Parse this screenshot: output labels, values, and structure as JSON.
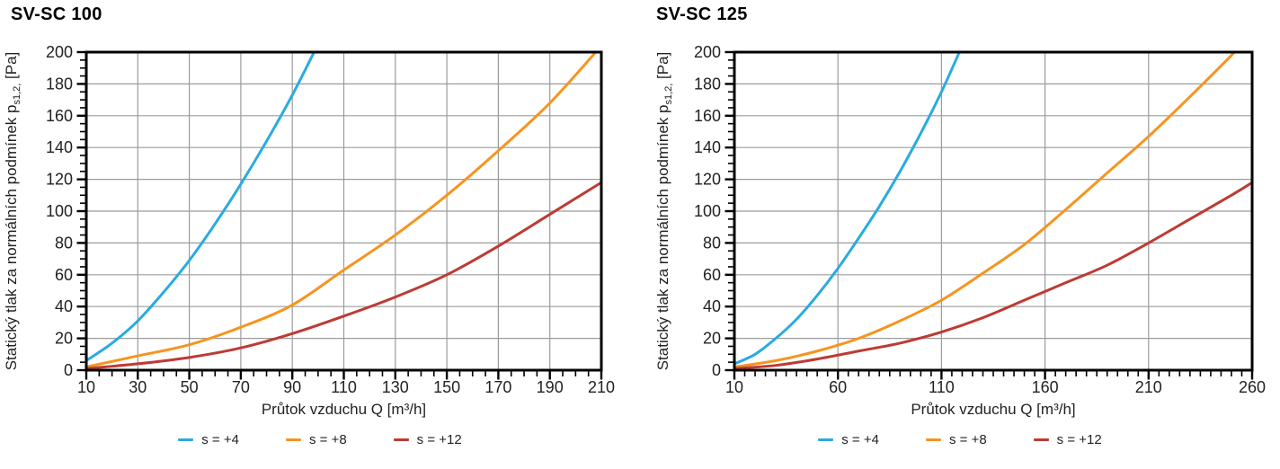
{
  "page": {
    "background": "#FFFFFF"
  },
  "colors": {
    "grid": "#9B9B9B",
    "axis": "#000000",
    "tick_text": "#222222",
    "title_text": "#000000"
  },
  "chart_data": [
    {
      "type": "line",
      "title": "SV-SC 100",
      "xlabel": "Průtok vzduchu Q [m³/h]",
      "ylabel_prefix": "Statický tlak za normálních podmínek p",
      "ylabel_sub": "s1,2,",
      "ylabel_suffix": " [Pa]",
      "x_min": 10,
      "x_max": 210,
      "x_major": 20,
      "x_minor": 5,
      "y_min": 0,
      "y_max": 200,
      "y_major": 20,
      "y_minor": 5,
      "x_tick_labels": [
        10,
        30,
        50,
        70,
        90,
        110,
        130,
        150,
        170,
        190,
        210
      ],
      "y_tick_labels": [
        0,
        20,
        40,
        60,
        80,
        100,
        120,
        140,
        160,
        180,
        200
      ],
      "grid": "on",
      "legend_position": "bottom",
      "series": [
        {
          "name": "s = +4",
          "color": "#29ABE2",
          "points": [
            [
              10,
              6
            ],
            [
              20,
              17
            ],
            [
              30,
              31
            ],
            [
              40,
              49
            ],
            [
              50,
              69
            ],
            [
              60,
              92
            ],
            [
              70,
              117
            ],
            [
              80,
              144
            ],
            [
              90,
              173
            ],
            [
              100,
              205
            ]
          ]
        },
        {
          "name": "s = +8",
          "color": "#F7941E",
          "points": [
            [
              10,
              2
            ],
            [
              30,
              9
            ],
            [
              50,
              16
            ],
            [
              70,
              27
            ],
            [
              90,
              41
            ],
            [
              110,
              63
            ],
            [
              130,
              85
            ],
            [
              150,
              110
            ],
            [
              170,
              138
            ],
            [
              190,
              168
            ],
            [
              210,
              204
            ]
          ]
        },
        {
          "name": "s = +12",
          "color": "#BE3A34",
          "points": [
            [
              10,
              1
            ],
            [
              30,
              4
            ],
            [
              50,
              8
            ],
            [
              70,
              14
            ],
            [
              90,
              23
            ],
            [
              110,
              34
            ],
            [
              130,
              46
            ],
            [
              150,
              60
            ],
            [
              170,
              78
            ],
            [
              190,
              98
            ],
            [
              210,
              118
            ]
          ]
        }
      ]
    },
    {
      "type": "line",
      "title": "SV-SC 125",
      "xlabel": "Průtok vzduchu Q [m³/h]",
      "ylabel_prefix": "Statický tlak za normálních podmínek p",
      "ylabel_sub": "s1,2,",
      "ylabel_suffix": " [Pa]",
      "x_min": 10,
      "x_max": 260,
      "x_major": 50,
      "x_minor": 5,
      "y_min": 0,
      "y_max": 200,
      "y_major": 20,
      "y_minor": 5,
      "x_tick_labels": [
        10,
        60,
        110,
        160,
        210,
        260
      ],
      "y_tick_labels": [
        0,
        20,
        40,
        60,
        80,
        100,
        120,
        140,
        160,
        180,
        200
      ],
      "grid": "on",
      "legend_position": "bottom",
      "series": [
        {
          "name": "s = +4",
          "color": "#29ABE2",
          "points": [
            [
              10,
              4
            ],
            [
              20,
              10
            ],
            [
              30,
              20
            ],
            [
              40,
              32
            ],
            [
              50,
              47
            ],
            [
              60,
              64
            ],
            [
              70,
              83
            ],
            [
              80,
              103
            ],
            [
              90,
              125
            ],
            [
              100,
              149
            ],
            [
              110,
              175
            ],
            [
              120,
              204
            ]
          ]
        },
        {
          "name": "s = +8",
          "color": "#F7941E",
          "points": [
            [
              10,
              2
            ],
            [
              30,
              6
            ],
            [
              50,
              12
            ],
            [
              70,
              20
            ],
            [
              90,
              31
            ],
            [
              110,
              44
            ],
            [
              130,
              61
            ],
            [
              150,
              79
            ],
            [
              170,
              101
            ],
            [
              190,
              124
            ],
            [
              210,
              147
            ],
            [
              230,
              172
            ],
            [
              250,
              198
            ],
            [
              260,
              212
            ]
          ]
        },
        {
          "name": "s = +12",
          "color": "#BE3A34",
          "points": [
            [
              10,
              1
            ],
            [
              30,
              3
            ],
            [
              50,
              7
            ],
            [
              70,
              12
            ],
            [
              90,
              17
            ],
            [
              110,
              24
            ],
            [
              130,
              33
            ],
            [
              150,
              44
            ],
            [
              170,
              55
            ],
            [
              190,
              66
            ],
            [
              210,
              80
            ],
            [
              230,
              95
            ],
            [
              250,
              110
            ],
            [
              260,
              118
            ]
          ]
        }
      ]
    }
  ]
}
